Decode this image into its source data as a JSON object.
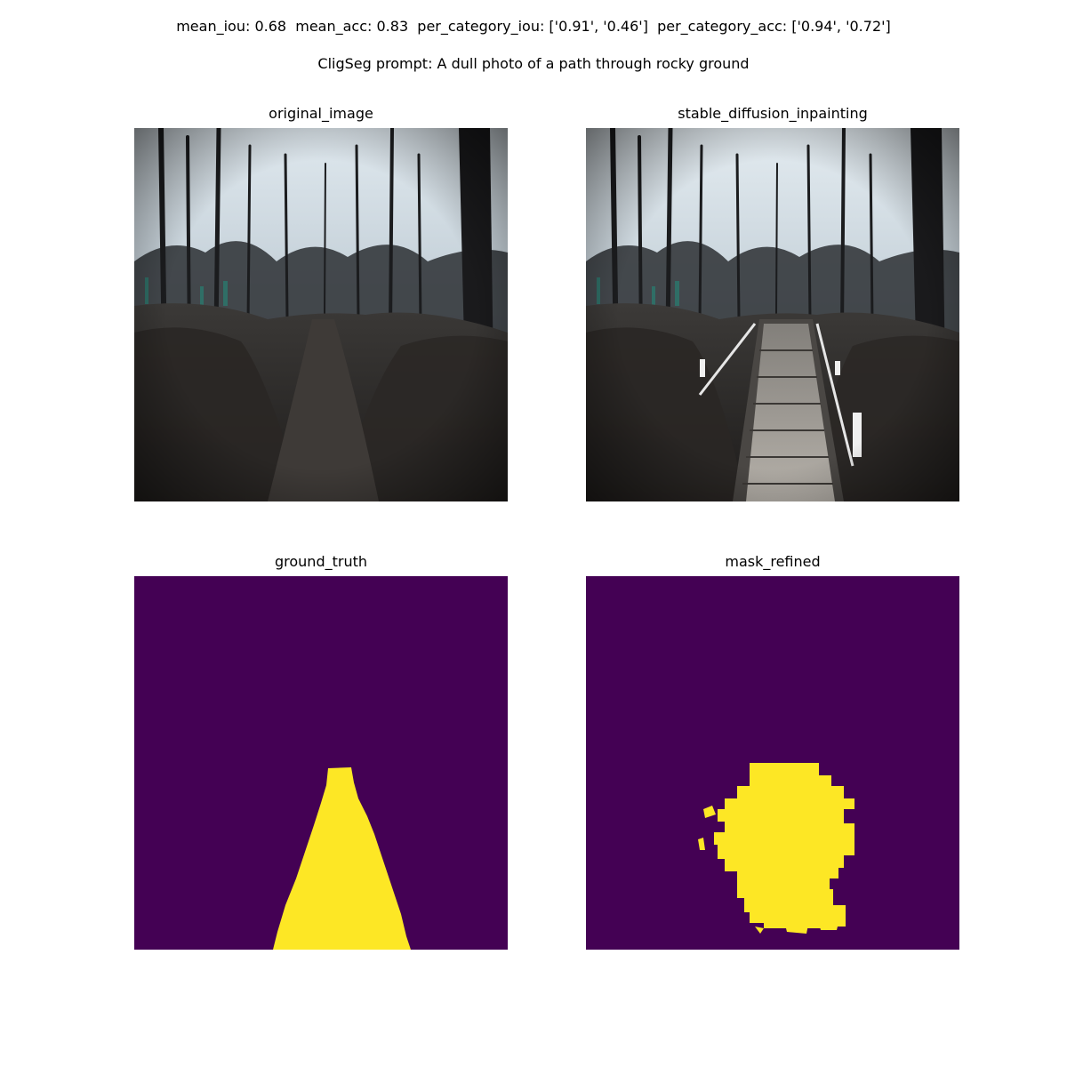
{
  "header": {
    "metrics": "mean_iou: 0.68  mean_acc: 0.83  per_category_iou: ['0.91', '0.46']  per_category_acc: ['0.94', '0.72']",
    "prompt": "CligSeg prompt: A dull photo of a path through rocky ground"
  },
  "panels": {
    "original": {
      "title": "original_image"
    },
    "inpainting": {
      "title": "stable_diffusion_inpainting"
    },
    "ground_truth": {
      "title": "ground_truth"
    },
    "mask_refined": {
      "title": "mask_refined"
    }
  },
  "colors": {
    "mask_background": "#440154",
    "mask_foreground": "#fde725"
  }
}
